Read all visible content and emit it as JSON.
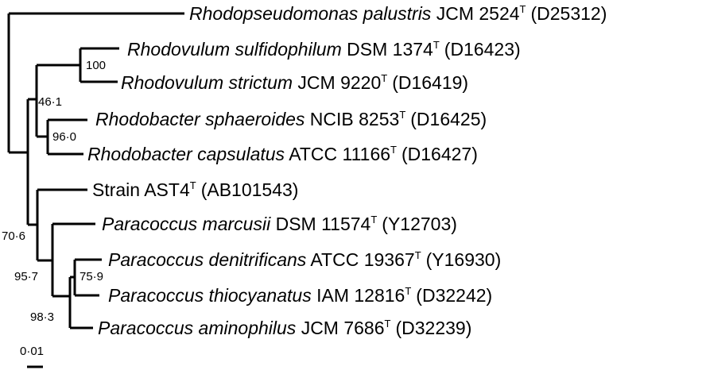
{
  "tree": {
    "taxa": [
      {
        "id": "rpal",
        "name": "Rhodopseudomonas palustris",
        "italic": true,
        "strain": "JCM 2524",
        "type_mark": "T",
        "accession": "(D25312)"
      },
      {
        "id": "rsul",
        "name": "Rhodovulum sulfidophilum",
        "italic": true,
        "strain": "DSM 1374",
        "type_mark": "T",
        "accession": "(D16423)"
      },
      {
        "id": "rstr",
        "name": "Rhodovulum strictum",
        "italic": true,
        "strain": "JCM 9220",
        "type_mark": "T",
        "accession": "(D16419)"
      },
      {
        "id": "rsph",
        "name": "Rhodobacter sphaeroides",
        "italic": true,
        "strain": "NCIB 8253",
        "type_mark": "T",
        "accession": "(D16425)"
      },
      {
        "id": "rcap",
        "name": "Rhodobacter capsulatus",
        "italic": true,
        "strain": "ATCC 11166",
        "type_mark": "T",
        "accession": "(D16427)"
      },
      {
        "id": "ast4",
        "name": "Strain",
        "italic": false,
        "strain": "AST4",
        "type_mark": "T",
        "accession": "(AB101543)"
      },
      {
        "id": "pmar",
        "name": "Paracoccus marcusii",
        "italic": true,
        "strain": "DSM 11574",
        "type_mark": "T",
        "accession": "(Y12703)"
      },
      {
        "id": "pden",
        "name": "Paracoccus denitrificans",
        "italic": true,
        "strain": "ATCC 19367",
        "type_mark": "T",
        "accession": "(Y16930)"
      },
      {
        "id": "pthi",
        "name": "Paracoccus thiocyanatus",
        "italic": true,
        "strain": "IAM 12816",
        "type_mark": "T",
        "accession": "(D32242)"
      },
      {
        "id": "pami",
        "name": "Paracoccus aminophilus",
        "italic": true,
        "strain": "JCM 7686",
        "type_mark": "T",
        "accession": "(D32239)"
      }
    ],
    "bootstrap": [
      {
        "id": "rhodovulum",
        "value": "100"
      },
      {
        "id": "rhodovulum-rhodobacter",
        "value": "46·1"
      },
      {
        "id": "rhodobacter",
        "value": "96·0"
      },
      {
        "id": "ast4-paracoccus",
        "value": "70·6"
      },
      {
        "id": "paracoccus",
        "value": "95·7"
      },
      {
        "id": "pden-pthi-pami",
        "value": "98·3"
      },
      {
        "id": "pden-pthi",
        "value": "75·9"
      }
    ],
    "scale_bar": {
      "label": "0·01",
      "value": 0.01
    }
  }
}
